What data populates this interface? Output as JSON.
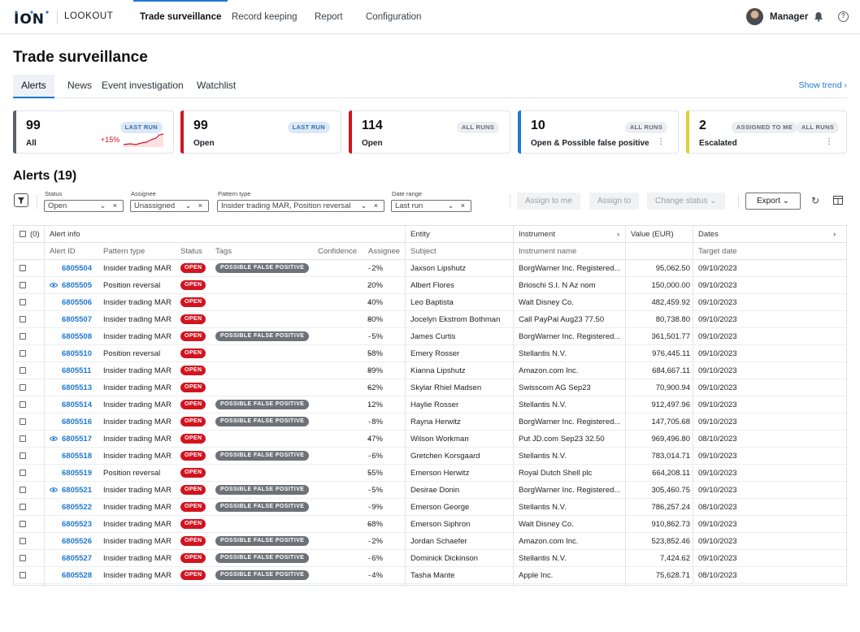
{
  "topnav": {
    "logo": "ION",
    "product": "LOOKOUT",
    "tabs": [
      "Trade surveillance",
      "Record keeping",
      "Report",
      "Configuration"
    ],
    "active_tab": "Trade surveillance",
    "user": "Manager",
    "icons": [
      "bell-icon",
      "help-icon"
    ]
  },
  "page": {
    "title": "Trade surveillance",
    "subtabs": [
      "Alerts",
      "News",
      "Event investigation",
      "Watchlist"
    ],
    "active_subtab": "Alerts",
    "show_trend": "Show trend"
  },
  "cards": [
    {
      "value": "99",
      "label": "All",
      "badges": [
        "LAST RUN"
      ],
      "trend": "+15%",
      "color": "#5a6068"
    },
    {
      "value": "99",
      "label": "Open",
      "badges": [
        "LAST RUN"
      ],
      "color": "#d3131f"
    },
    {
      "value": "114",
      "label": "Open",
      "badges": [
        "ALL RUNS"
      ],
      "color": "#d3131f"
    },
    {
      "value": "10",
      "label": "Open & Possible false positive",
      "badges": [
        "ALL RUNS"
      ],
      "color": "#1f78d1"
    },
    {
      "value": "2",
      "label": "Escalated",
      "badges": [
        "ASSIGNED TO ME",
        "ALL RUNS"
      ],
      "color": "#e0cf3c"
    }
  ],
  "alerts": {
    "title": "Alerts (19)",
    "filters": {
      "status": {
        "label": "Status",
        "value": "Open"
      },
      "assignee": {
        "label": "Assignee",
        "value": "Unassigned"
      },
      "pattern": {
        "label": "Pattern type",
        "value": "Insider trading MAR, Position reversal"
      },
      "date": {
        "label": "Date range",
        "value": "Last run"
      }
    },
    "actions": {
      "assign_to_me": "Assign to me",
      "assign_to": "Assign to",
      "change_status": "Change status",
      "export": "Export"
    }
  },
  "table": {
    "select_count": "(0)",
    "groups": {
      "alert_info": "Alert info",
      "entity": "Entity",
      "instrument": "Instrument",
      "value": "Value (EUR)",
      "dates": "Dates"
    },
    "columns": {
      "alert_id": "Alert ID",
      "pattern": "Pattern type",
      "status": "Status",
      "tags": "Tags",
      "confidence": "Confidence",
      "assignee": "Assignee",
      "subject": "Subject",
      "instrument_name": "Instrument name",
      "target_date": "Target date"
    },
    "open_label": "OPEN",
    "fp_label": "POSSIBLE FALSE POSITIVE",
    "rows": [
      {
        "id": "6805504",
        "pattern": "Insider trading MAR",
        "fp": true,
        "eye": false,
        "confidence": "2%",
        "assignee": "-",
        "subject": "Jaxson Lipshutz",
        "instrument": "BorgWarner Inc. Registered...",
        "value": "95,062.50",
        "date": "09/10/2023"
      },
      {
        "id": "6805505",
        "pattern": "Position reversal",
        "fp": false,
        "eye": true,
        "confidence": "20%",
        "assignee": "-",
        "subject": "Albert Flores",
        "instrument": "Brioschi S.I. N Az nom",
        "value": "150,000.00",
        "date": "09/10/2023"
      },
      {
        "id": "6805506",
        "pattern": "Insider trading MAR",
        "fp": false,
        "eye": false,
        "confidence": "40%",
        "assignee": "-",
        "subject": "Leo Baptista",
        "instrument": "Walt Disney Co.",
        "value": "482,459.92",
        "date": "09/10/2023"
      },
      {
        "id": "6805507",
        "pattern": "Insider trading MAR",
        "fp": false,
        "eye": false,
        "confidence": "80%",
        "assignee": "-",
        "subject": "Jocelyn Ekstrom Bothman",
        "instrument": "Call PayPal Aug23 77.50",
        "value": "80,738.80",
        "date": "09/10/2023"
      },
      {
        "id": "6805508",
        "pattern": "Insider trading MAR",
        "fp": true,
        "eye": false,
        "confidence": "5%",
        "assignee": "-",
        "subject": "James Curtis",
        "instrument": "BorgWarner Inc. Registered...",
        "value": "361,501.77",
        "date": "09/10/2023"
      },
      {
        "id": "6805510",
        "pattern": "Position reversal",
        "fp": false,
        "eye": false,
        "confidence": "58%",
        "assignee": "-",
        "subject": "Emery Rosser",
        "instrument": "Stellantis N.V.",
        "value": "976,445.11",
        "date": "09/10/2023"
      },
      {
        "id": "6805511",
        "pattern": "Insider trading MAR",
        "fp": false,
        "eye": false,
        "confidence": "89%",
        "assignee": "-",
        "subject": "Kianna Lipshutz",
        "instrument": "Amazon.com Inc.",
        "value": "684,667.11",
        "date": "09/10/2023"
      },
      {
        "id": "6805513",
        "pattern": "Insider trading MAR",
        "fp": false,
        "eye": false,
        "confidence": "62%",
        "assignee": "-",
        "subject": "Skylar Rhiel Madsen",
        "instrument": "Swisscom AG Sep23",
        "value": "70,900.94",
        "date": "09/10/2023"
      },
      {
        "id": "6805514",
        "pattern": "Insider trading MAR",
        "fp": true,
        "eye": false,
        "confidence": "12%",
        "assignee": "-",
        "subject": "Haylie Rosser",
        "instrument": "Stellantis N.V.",
        "value": "912,497.96",
        "date": "09/10/2023"
      },
      {
        "id": "6805516",
        "pattern": "Insider trading MAR",
        "fp": true,
        "eye": false,
        "confidence": "8%",
        "assignee": "-",
        "subject": "Rayna Herwitz",
        "instrument": "BorgWarner Inc. Registered...",
        "value": "147,705.68",
        "date": "09/10/2023"
      },
      {
        "id": "6805517",
        "pattern": "Insider trading MAR",
        "fp": false,
        "eye": true,
        "confidence": "47%",
        "assignee": "-",
        "subject": "Wilson Workman",
        "instrument": "Put JD.com Sep23 32.50",
        "value": "969,496.80",
        "date": "08/10/2023"
      },
      {
        "id": "6805518",
        "pattern": "Insider trading MAR",
        "fp": true,
        "eye": false,
        "confidence": "6%",
        "assignee": "-",
        "subject": "Gretchen Korsgaard",
        "instrument": "Stellantis N.V.",
        "value": "783,014.71",
        "date": "09/10/2023"
      },
      {
        "id": "6805519",
        "pattern": "Position reversal",
        "fp": false,
        "eye": false,
        "confidence": "55%",
        "assignee": "-",
        "subject": "Emerson Herwitz",
        "instrument": "Royal Dutch Shell plc",
        "value": "664,208.11",
        "date": "09/10/2023"
      },
      {
        "id": "6805521",
        "pattern": "Insider trading MAR",
        "fp": true,
        "eye": true,
        "confidence": "5%",
        "assignee": "-",
        "subject": "Desirae Donin",
        "instrument": "BorgWarner Inc. Registered...",
        "value": "305,460.75",
        "date": "09/10/2023"
      },
      {
        "id": "6805522",
        "pattern": "Insider trading MAR",
        "fp": true,
        "eye": false,
        "confidence": "9%",
        "assignee": "-",
        "subject": "Emerson George",
        "instrument": "Stellantis N.V.",
        "value": "786,257.24",
        "date": "08/10/2023"
      },
      {
        "id": "6805523",
        "pattern": "Insider trading MAR",
        "fp": false,
        "eye": false,
        "confidence": "68%",
        "assignee": "-",
        "subject": "Emerson Siphron",
        "instrument": "Walt Disney Co.",
        "value": "910,862.73",
        "date": "09/10/2023"
      },
      {
        "id": "6805526",
        "pattern": "Insider trading MAR",
        "fp": true,
        "eye": false,
        "confidence": "2%",
        "assignee": "-",
        "subject": "Jordan Schaefer",
        "instrument": "Amazon.com Inc.",
        "value": "523,852.46",
        "date": "09/10/2023"
      },
      {
        "id": "6805527",
        "pattern": "Insider trading MAR",
        "fp": true,
        "eye": false,
        "confidence": "6%",
        "assignee": "-",
        "subject": "Dominick Dickinson",
        "instrument": "Stellantis N.V.",
        "value": "7,424.62",
        "date": "09/10/2023"
      },
      {
        "id": "6805528",
        "pattern": "Insider trading MAR",
        "fp": true,
        "eye": false,
        "confidence": "4%",
        "assignee": "-",
        "subject": "Tasha Mante",
        "instrument": "Apple Inc.",
        "value": "75,628.71",
        "date": "08/10/2023"
      }
    ]
  }
}
